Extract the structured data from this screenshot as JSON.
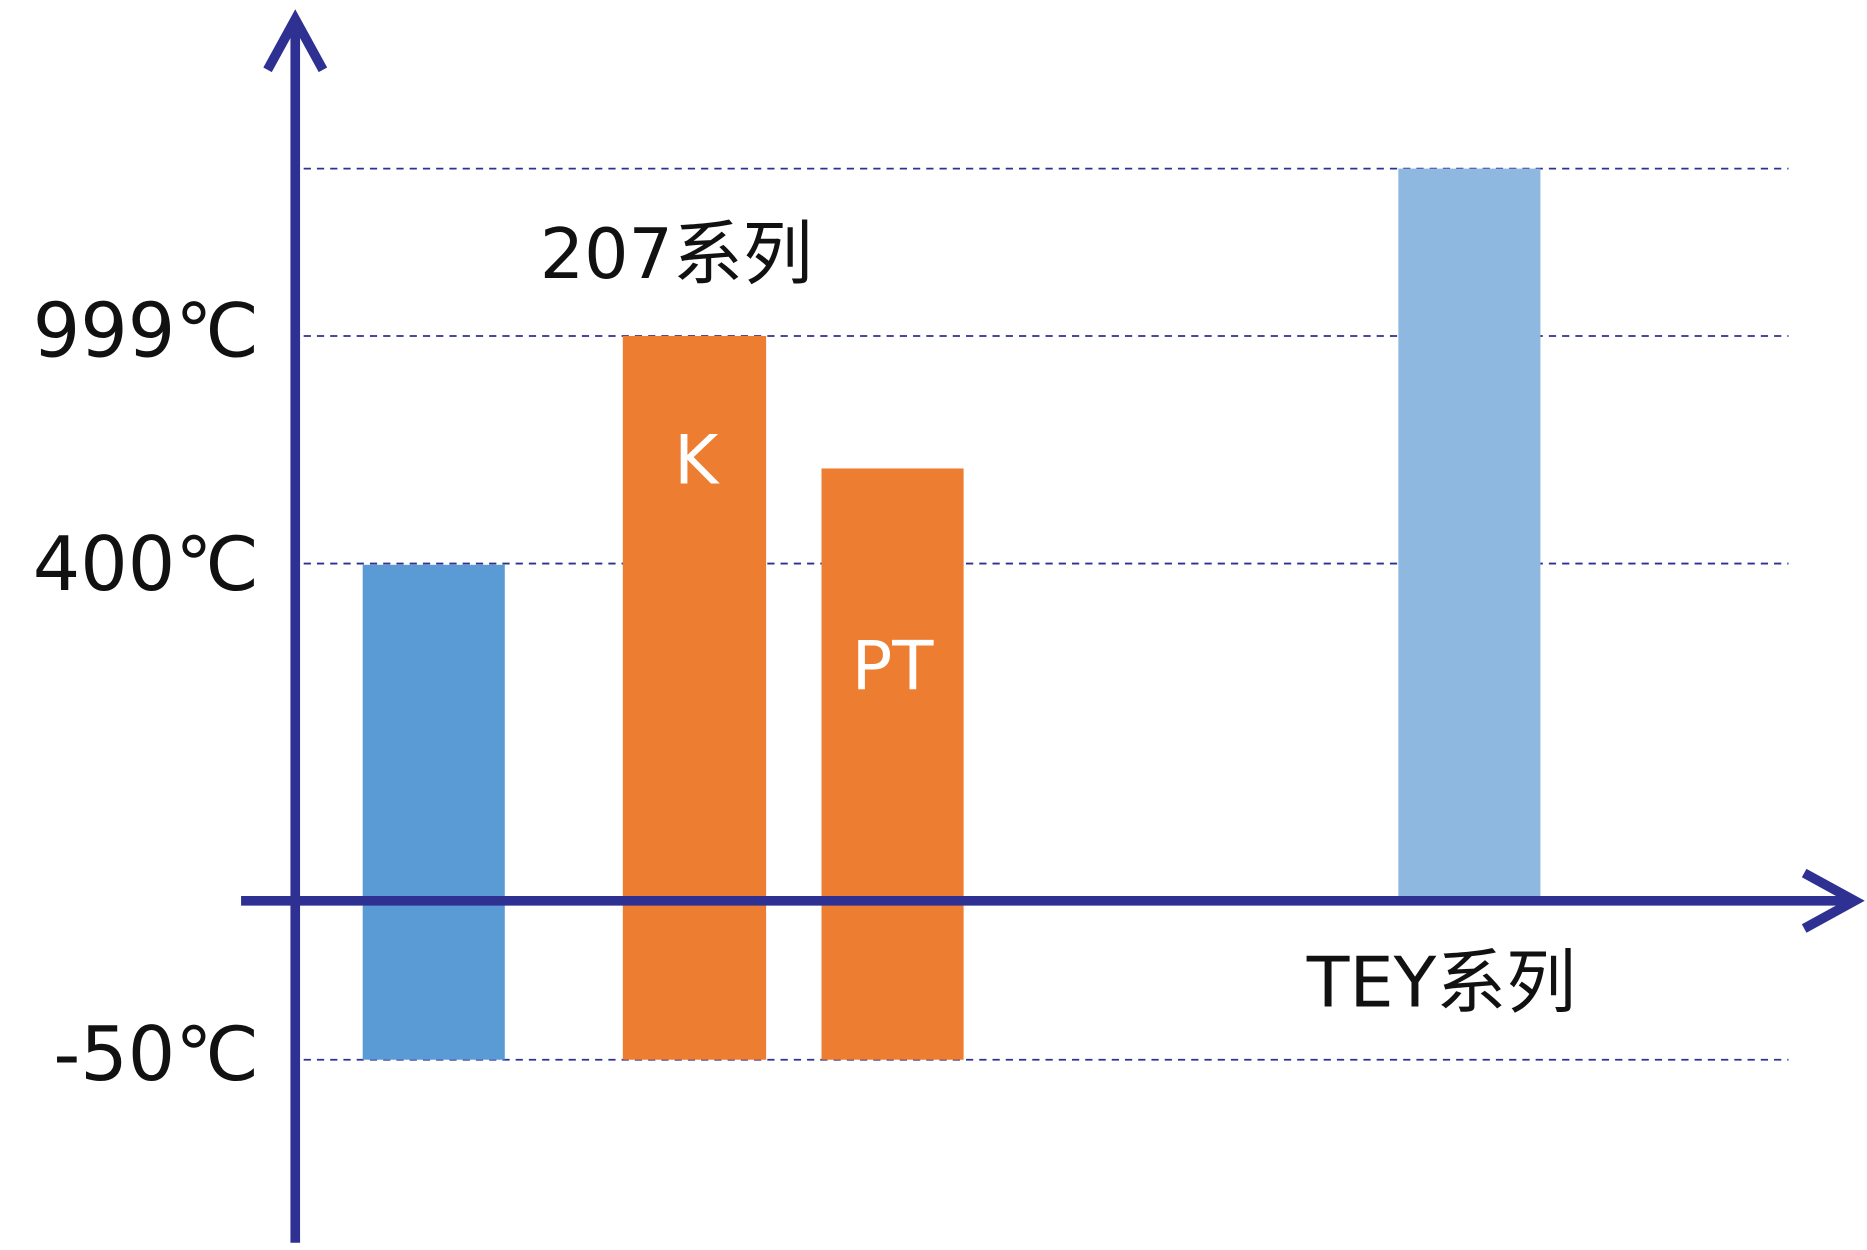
{
  "y_labels": [
    "999℃",
    "400℃",
    "-50℃"
  ],
  "annotations": {
    "series_207": "207系列",
    "bar_k": "K",
    "bar_pt": "PT",
    "series_tey": "TEY系列"
  }
}
